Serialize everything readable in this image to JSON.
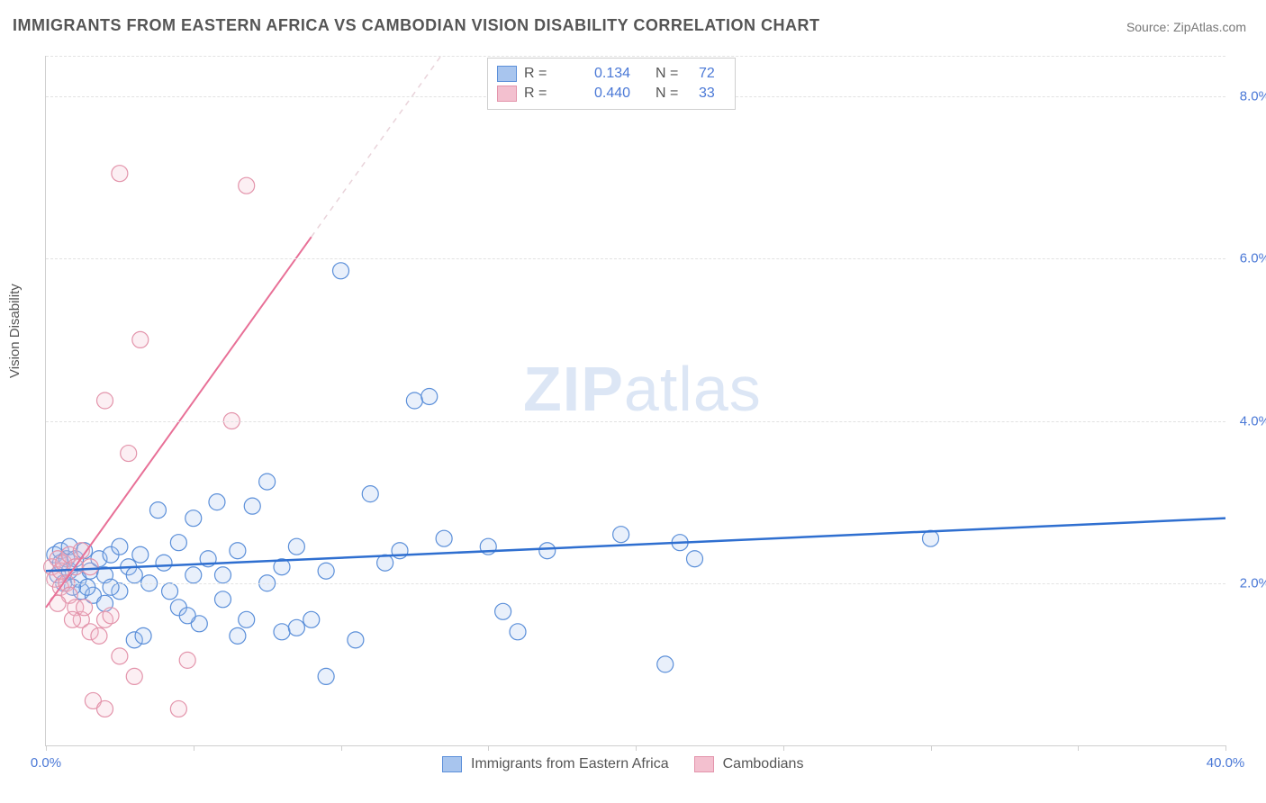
{
  "title": "IMMIGRANTS FROM EASTERN AFRICA VS CAMBODIAN VISION DISABILITY CORRELATION CHART",
  "source": "Source: ZipAtlas.com",
  "ylabel": "Vision Disability",
  "watermark_bold": "ZIP",
  "watermark_rest": "atlas",
  "chart": {
    "type": "scatter",
    "xlim": [
      0,
      40
    ],
    "ylim": [
      0,
      8.5
    ],
    "x_ticks": [
      0,
      5,
      10,
      15,
      20,
      25,
      30,
      35,
      40
    ],
    "x_tick_labels": {
      "0": "0.0%",
      "40": "40.0%"
    },
    "y_ticks": [
      2,
      4,
      6,
      8
    ],
    "y_tick_labels": {
      "2": "2.0%",
      "4": "4.0%",
      "6": "6.0%",
      "8": "8.0%"
    },
    "grid_y": [
      2,
      4,
      6,
      8,
      8.5
    ],
    "background_color": "#ffffff",
    "grid_color": "#e2e2e2",
    "axis_color": "#cfcfcf",
    "marker_radius": 9,
    "marker_stroke_width": 1.2,
    "marker_fill_opacity": 0.25,
    "series": [
      {
        "id": "eastern_africa",
        "label": "Immigrants from Eastern Africa",
        "color_stroke": "#5b8fd9",
        "color_fill": "#a8c5ee",
        "R": "0.134",
        "N": "72",
        "trend": {
          "x1": 0,
          "y1": 2.15,
          "x2": 40,
          "y2": 2.8,
          "dash_from_x": null,
          "color": "#2f6fd0",
          "width": 2.5,
          "dash_color": "#b9cdef"
        },
        "points": [
          [
            0.3,
            2.35
          ],
          [
            0.4,
            2.1
          ],
          [
            0.5,
            2.25
          ],
          [
            0.5,
            2.4
          ],
          [
            0.6,
            2.0
          ],
          [
            0.7,
            2.3
          ],
          [
            0.8,
            2.15
          ],
          [
            0.8,
            2.45
          ],
          [
            1.0,
            2.3
          ],
          [
            1.1,
            2.05
          ],
          [
            1.2,
            1.9
          ],
          [
            1.3,
            2.4
          ],
          [
            1.5,
            2.15
          ],
          [
            1.6,
            1.85
          ],
          [
            1.8,
            2.3
          ],
          [
            2.0,
            2.1
          ],
          [
            2.0,
            1.75
          ],
          [
            2.2,
            2.35
          ],
          [
            2.5,
            2.45
          ],
          [
            2.5,
            1.9
          ],
          [
            2.8,
            2.2
          ],
          [
            3.0,
            2.1
          ],
          [
            3.0,
            1.3
          ],
          [
            3.2,
            2.35
          ],
          [
            3.5,
            2.0
          ],
          [
            3.8,
            2.9
          ],
          [
            4.0,
            2.25
          ],
          [
            4.2,
            1.9
          ],
          [
            4.5,
            2.5
          ],
          [
            4.5,
            1.7
          ],
          [
            5.0,
            2.1
          ],
          [
            5.0,
            2.8
          ],
          [
            5.2,
            1.5
          ],
          [
            5.5,
            2.3
          ],
          [
            5.8,
            3.0
          ],
          [
            6.0,
            2.1
          ],
          [
            6.0,
            1.8
          ],
          [
            6.5,
            2.4
          ],
          [
            6.5,
            1.35
          ],
          [
            7.0,
            2.95
          ],
          [
            7.5,
            3.25
          ],
          [
            7.5,
            2.0
          ],
          [
            8.0,
            1.4
          ],
          [
            8.0,
            2.2
          ],
          [
            8.5,
            2.45
          ],
          [
            8.5,
            1.45
          ],
          [
            9.0,
            1.55
          ],
          [
            9.5,
            2.15
          ],
          [
            9.5,
            0.85
          ],
          [
            10.0,
            5.85
          ],
          [
            10.5,
            1.3
          ],
          [
            11.0,
            3.1
          ],
          [
            11.5,
            2.25
          ],
          [
            12.0,
            2.4
          ],
          [
            12.5,
            4.25
          ],
          [
            13.0,
            4.3
          ],
          [
            13.5,
            2.55
          ],
          [
            15.0,
            2.45
          ],
          [
            15.5,
            1.65
          ],
          [
            16.0,
            1.4
          ],
          [
            17.0,
            2.4
          ],
          [
            19.5,
            2.6
          ],
          [
            21.0,
            1.0
          ],
          [
            21.5,
            2.5
          ],
          [
            30.0,
            2.55
          ],
          [
            22.0,
            2.3
          ],
          [
            6.8,
            1.55
          ],
          [
            4.8,
            1.6
          ],
          [
            3.3,
            1.35
          ],
          [
            2.2,
            1.95
          ],
          [
            1.4,
            1.95
          ],
          [
            0.9,
            1.95
          ]
        ]
      },
      {
        "id": "cambodians",
        "label": "Cambodians",
        "color_stroke": "#e394ab",
        "color_fill": "#f3c0cf",
        "R": "0.440",
        "N": "33",
        "trend": {
          "x1": 0,
          "y1": 1.7,
          "x2": 40,
          "y2": 22.0,
          "dash_from_x": 9.0,
          "color": "#e87097",
          "width": 2,
          "dash_color": "#e9d3da"
        },
        "points": [
          [
            0.2,
            2.2
          ],
          [
            0.3,
            2.05
          ],
          [
            0.4,
            2.3
          ],
          [
            0.5,
            1.95
          ],
          [
            0.5,
            2.15
          ],
          [
            0.6,
            2.25
          ],
          [
            0.7,
            2.0
          ],
          [
            0.8,
            2.35
          ],
          [
            0.8,
            1.85
          ],
          [
            1.0,
            2.2
          ],
          [
            1.0,
            1.7
          ],
          [
            1.2,
            2.4
          ],
          [
            1.2,
            1.55
          ],
          [
            1.5,
            2.2
          ],
          [
            1.5,
            1.4
          ],
          [
            1.6,
            0.55
          ],
          [
            1.8,
            1.35
          ],
          [
            2.0,
            1.55
          ],
          [
            2.0,
            0.45
          ],
          [
            2.2,
            1.6
          ],
          [
            2.5,
            7.05
          ],
          [
            2.5,
            1.1
          ],
          [
            3.0,
            0.85
          ],
          [
            3.2,
            5.0
          ],
          [
            4.5,
            0.45
          ],
          [
            4.8,
            1.05
          ],
          [
            6.8,
            6.9
          ],
          [
            6.3,
            4.0
          ],
          [
            2.8,
            3.6
          ],
          [
            2.0,
            4.25
          ],
          [
            1.3,
            1.7
          ],
          [
            0.9,
            1.55
          ],
          [
            0.4,
            1.75
          ]
        ]
      }
    ]
  },
  "legend_top": {
    "R_label": "R  =",
    "N_label": "N  ="
  },
  "colors": {
    "title": "#555555",
    "axis_label": "#555555",
    "tick_label": "#4a78d6"
  }
}
